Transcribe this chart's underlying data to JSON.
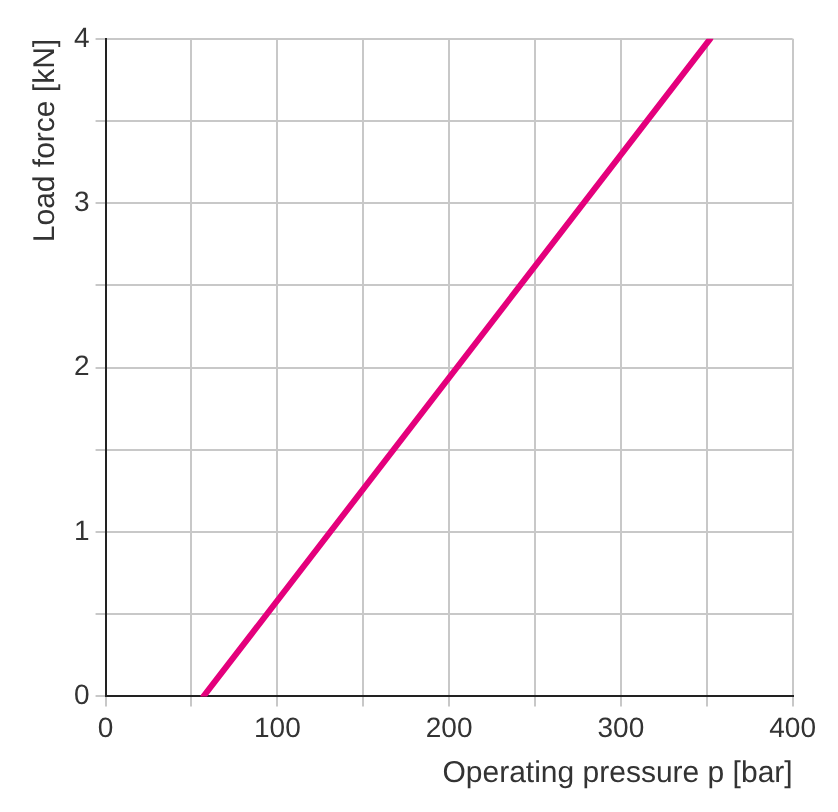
{
  "chart_data": {
    "type": "line",
    "xlabel": "Operating pressure p [bar]",
    "ylabel": "Load force [kN]",
    "x": [
      57,
      352
    ],
    "series": [
      {
        "color": "#e4007c",
        "values": [
          0,
          4
        ]
      }
    ],
    "xlim": [
      0,
      400
    ],
    "ylim": [
      0,
      4
    ],
    "xticks": [
      0,
      {
        "value": 50,
        "label": null
      },
      100,
      {
        "value": 150,
        "label": null
      },
      200,
      {
        "value": 250,
        "label": null
      },
      300,
      {
        "value": 350,
        "label": null
      },
      400
    ],
    "yticks": [
      0,
      {
        "value": 0.5,
        "label": null
      },
      1,
      {
        "value": 1.5,
        "label": null
      },
      2,
      {
        "value": 2.5,
        "label": null
      },
      3,
      {
        "value": 3.5,
        "label": null
      },
      4
    ],
    "grid": true,
    "marker": "none",
    "line_style": "solid",
    "legend": false
  }
}
